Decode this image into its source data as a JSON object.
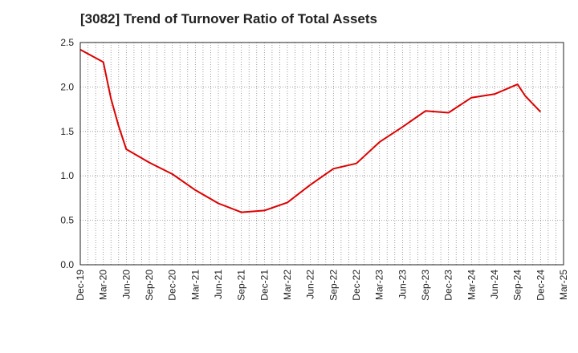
{
  "chart_data": {
    "type": "line",
    "title": "[3082]  Trend of Turnover Ratio of Total Assets",
    "xlabel": "",
    "ylabel": "",
    "ylim": [
      0,
      2.5
    ],
    "yticks": [
      "0.0",
      "0.5",
      "1.0",
      "1.5",
      "2.0",
      "2.5"
    ],
    "xticks": [
      "Dec-19",
      "Mar-20",
      "Jun-20",
      "Sep-20",
      "Dec-20",
      "Mar-21",
      "Jun-21",
      "Sep-21",
      "Dec-21",
      "Mar-22",
      "Jun-22",
      "Sep-22",
      "Dec-22",
      "Mar-23",
      "Jun-23",
      "Sep-23",
      "Dec-23",
      "Mar-24",
      "Jun-24",
      "Sep-24",
      "Dec-24",
      "Mar-25"
    ],
    "grid": true,
    "legend": "none",
    "series": [
      {
        "color": "#dd0000",
        "values": [
          {
            "x": "Dec-19",
            "y": 2.42
          },
          {
            "x": "Mar-20",
            "y": 2.28
          },
          {
            "x": "Apr-20",
            "y": 1.87
          },
          {
            "x": "May-20",
            "y": 1.56
          },
          {
            "x": "Jun-20",
            "y": 1.3
          },
          {
            "x": "Sep-20",
            "y": 1.15
          },
          {
            "x": "Dec-20",
            "y": 1.02
          },
          {
            "x": "Mar-21",
            "y": 0.84
          },
          {
            "x": "Jun-21",
            "y": 0.69
          },
          {
            "x": "Sep-21",
            "y": 0.59
          },
          {
            "x": "Dec-21",
            "y": 0.61
          },
          {
            "x": "Mar-22",
            "y": 0.7
          },
          {
            "x": "Jun-22",
            "y": 0.9
          },
          {
            "x": "Sep-22",
            "y": 1.08
          },
          {
            "x": "Dec-22",
            "y": 1.14
          },
          {
            "x": "Mar-23",
            "y": 1.38
          },
          {
            "x": "Jun-23",
            "y": 1.55
          },
          {
            "x": "Sep-23",
            "y": 1.73
          },
          {
            "x": "Dec-23",
            "y": 1.71
          },
          {
            "x": "Mar-24",
            "y": 1.88
          },
          {
            "x": "Jun-24",
            "y": 1.92
          },
          {
            "x": "Sep-24",
            "y": 2.03
          },
          {
            "x": "Oct-24",
            "y": 1.9
          },
          {
            "x": "Dec-24",
            "y": 1.72
          }
        ]
      }
    ]
  }
}
